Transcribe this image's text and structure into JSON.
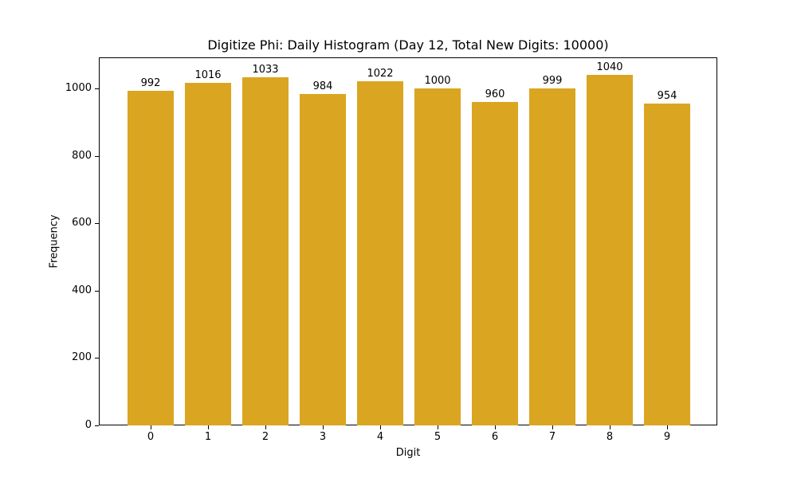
{
  "chart_data": {
    "type": "bar",
    "title": "Digitize Phi: Daily Histogram (Day 12, Total New Digits: 10000)",
    "xlabel": "Digit",
    "ylabel": "Frequency",
    "categories": [
      "0",
      "1",
      "2",
      "3",
      "4",
      "5",
      "6",
      "7",
      "8",
      "9"
    ],
    "values": [
      992,
      1016,
      1033,
      984,
      1022,
      1000,
      960,
      999,
      1040,
      954
    ],
    "data_labels": [
      "992",
      "1016",
      "1033",
      "984",
      "1022",
      "1000",
      "960",
      "999",
      "1040",
      "954"
    ],
    "yticks": [
      0,
      200,
      400,
      600,
      800,
      1000
    ],
    "ylim": [
      0,
      1092
    ],
    "bar_color": "#DAA520",
    "grid": false,
    "legend": null
  }
}
